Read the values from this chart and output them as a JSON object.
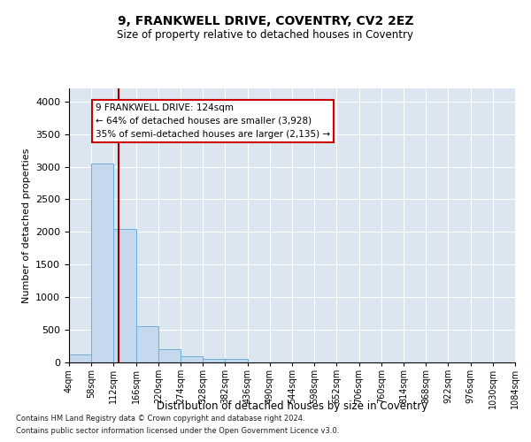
{
  "title_line1": "9, FRANKWELL DRIVE, COVENTRY, CV2 2EZ",
  "title_line2": "Size of property relative to detached houses in Coventry",
  "xlabel": "Distribution of detached houses by size in Coventry",
  "ylabel": "Number of detached properties",
  "bin_edges": [
    4,
    58,
    112,
    166,
    220,
    274,
    328,
    382,
    436,
    490,
    544,
    598,
    652,
    706,
    760,
    814,
    868,
    922,
    976,
    1030,
    1084
  ],
  "bin_counts": [
    120,
    3050,
    2050,
    550,
    200,
    100,
    50,
    50,
    0,
    0,
    0,
    0,
    0,
    0,
    0,
    0,
    0,
    0,
    0,
    0
  ],
  "property_size": 124,
  "bar_color": "#c5d8ee",
  "bar_edge_color": "#6aaed6",
  "line_color": "#990000",
  "annotation_box_color": "#ffffff",
  "annotation_box_edge": "#cc0000",
  "annotation_text_line1": "9 FRANKWELL DRIVE: 124sqm",
  "annotation_text_line2": "← 64% of detached houses are smaller (3,928)",
  "annotation_text_line3": "35% of semi-detached houses are larger (2,135) →",
  "ylim": [
    0,
    4200
  ],
  "yticks": [
    0,
    500,
    1000,
    1500,
    2000,
    2500,
    3000,
    3500,
    4000
  ],
  "background_color": "#dce6f0",
  "footer_line1": "Contains HM Land Registry data © Crown copyright and database right 2024.",
  "footer_line2": "Contains public sector information licensed under the Open Government Licence v3.0."
}
